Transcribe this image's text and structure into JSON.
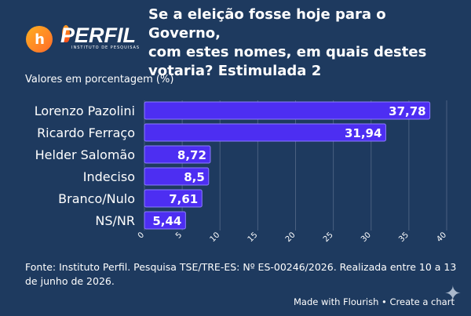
{
  "header": {
    "title": "Se a eleição fosse hoje para o Governo,\ncom estes nomes, em quais destes\nvotaria? Estimulada 2",
    "subtitle": "Valores em porcentagem (%)",
    "logo_h_text": "h",
    "logo_perfil_text": "PERFIL",
    "logo_perfil_subtext": "INSTITUTO DE PESQUISAS"
  },
  "chart_data": {
    "type": "bar",
    "orientation": "horizontal",
    "categories": [
      "Lorenzo Pazolini",
      "Ricardo Ferraço",
      "Helder Salomão",
      "Indeciso",
      "Branco/Nulo",
      "NS/NR"
    ],
    "values": [
      37.78,
      31.94,
      8.72,
      8.5,
      7.61,
      5.44
    ],
    "value_labels": [
      "37,78",
      "31,94",
      "8,72",
      "8,5",
      "7,61",
      "5,44"
    ],
    "xlim": [
      0,
      40
    ],
    "xticks": [
      0,
      5,
      10,
      15,
      20,
      25,
      30,
      35,
      40
    ],
    "grid": true,
    "legend": "none",
    "bar_color": "#4d2ef2"
  },
  "footer": {
    "source": "Fonte: Instituto Perfil. Pesquisa TSE/TRE-ES: Nº ES-00246/2026. Realizada entre 10 a 13 de junho de 2026.",
    "credit": "Made with Flourish • Create a chart"
  },
  "colors": {
    "background": "#1e3a5f",
    "bar": "#4d2ef2",
    "bar_outline": "#8c7cff",
    "text": "#ffffff",
    "grid": "#4a6080"
  },
  "icons": {
    "sparkle": "sparkle-icon"
  }
}
